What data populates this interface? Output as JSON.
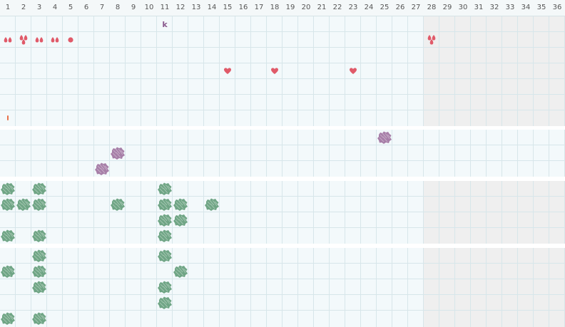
{
  "days": [
    "1",
    "2",
    "3",
    "4",
    "5",
    "6",
    "7",
    "8",
    "9",
    "10",
    "11",
    "12",
    "13",
    "14",
    "15",
    "16",
    "17",
    "18",
    "19",
    "20",
    "21",
    "22",
    "23",
    "24",
    "25",
    "26",
    "27",
    "28",
    "29",
    "30",
    "31",
    "32",
    "33",
    "34",
    "35",
    "36"
  ],
  "today_index": 27,
  "colors": {
    "symptom_red": "#e05a69",
    "sleep_purple": "#a77fa8",
    "activity_green": "#6fa585",
    "label_purple": "#8a5a8e",
    "spotting_orange": "#e8704a",
    "grid": "#d7e6ea",
    "active_bg": "#f3f9fb",
    "future_bg": "#efefef"
  },
  "sections": [
    {
      "id": "symptoms",
      "rows": 7,
      "marks": [
        {
          "day": 1,
          "row": 1,
          "icon": "drops-two-icon"
        },
        {
          "day": 2,
          "row": 1,
          "icon": "drops-three-icon"
        },
        {
          "day": 3,
          "row": 1,
          "icon": "drops-two-icon"
        },
        {
          "day": 4,
          "row": 1,
          "icon": "drops-two-icon"
        },
        {
          "day": 5,
          "row": 1,
          "icon": "dot-icon"
        },
        {
          "day": 28,
          "row": 1,
          "icon": "drops-three-icon"
        },
        {
          "day": 11,
          "row": 0,
          "icon": "letter-k",
          "text": "k"
        },
        {
          "day": 15,
          "row": 3,
          "icon": "heart-icon"
        },
        {
          "day": 18,
          "row": 3,
          "icon": "heart-icon"
        },
        {
          "day": 23,
          "row": 3,
          "icon": "heart-icon"
        },
        {
          "day": 1,
          "row": 6,
          "icon": "spotting-tick-icon"
        }
      ]
    },
    {
      "id": "sleep",
      "rows": 3,
      "marks": [
        {
          "day": 25,
          "row": 0,
          "icon": "sleep-blob-icon"
        },
        {
          "day": 8,
          "row": 1,
          "icon": "sleep-blob-icon"
        },
        {
          "day": 7,
          "row": 2,
          "icon": "sleep-blob-icon"
        }
      ]
    },
    {
      "id": "activity",
      "rows": 4,
      "marks": [
        {
          "day": 1,
          "row": 0,
          "icon": "activity-blob-icon"
        },
        {
          "day": 3,
          "row": 0,
          "icon": "activity-blob-icon"
        },
        {
          "day": 11,
          "row": 0,
          "icon": "activity-blob-icon"
        },
        {
          "day": 1,
          "row": 1,
          "icon": "activity-blob-icon"
        },
        {
          "day": 2,
          "row": 1,
          "icon": "activity-blob-icon"
        },
        {
          "day": 3,
          "row": 1,
          "icon": "activity-blob-icon"
        },
        {
          "day": 8,
          "row": 1,
          "icon": "activity-blob-icon"
        },
        {
          "day": 11,
          "row": 1,
          "icon": "activity-blob-icon"
        },
        {
          "day": 12,
          "row": 1,
          "icon": "activity-blob-icon"
        },
        {
          "day": 14,
          "row": 1,
          "icon": "activity-blob-icon"
        },
        {
          "day": 11,
          "row": 2,
          "icon": "activity-blob-icon"
        },
        {
          "day": 12,
          "row": 2,
          "icon": "activity-blob-icon"
        },
        {
          "day": 1,
          "row": 3,
          "icon": "activity-blob-icon"
        },
        {
          "day": 3,
          "row": 3,
          "icon": "activity-blob-icon"
        },
        {
          "day": 11,
          "row": 3,
          "icon": "activity-blob-icon"
        }
      ]
    },
    {
      "id": "exercise",
      "rows": 5,
      "marks": [
        {
          "day": 3,
          "row": 0,
          "icon": "activity-blob-icon"
        },
        {
          "day": 11,
          "row": 0,
          "icon": "activity-blob-icon"
        },
        {
          "day": 1,
          "row": 1,
          "icon": "activity-blob-icon"
        },
        {
          "day": 3,
          "row": 1,
          "icon": "activity-blob-icon"
        },
        {
          "day": 12,
          "row": 1,
          "icon": "activity-blob-icon"
        },
        {
          "day": 3,
          "row": 2,
          "icon": "activity-blob-icon"
        },
        {
          "day": 11,
          "row": 2,
          "icon": "activity-blob-icon"
        },
        {
          "day": 11,
          "row": 3,
          "icon": "activity-blob-icon"
        },
        {
          "day": 1,
          "row": 4,
          "icon": "activity-blob-icon"
        },
        {
          "day": 3,
          "row": 4,
          "icon": "activity-blob-icon"
        }
      ]
    }
  ]
}
